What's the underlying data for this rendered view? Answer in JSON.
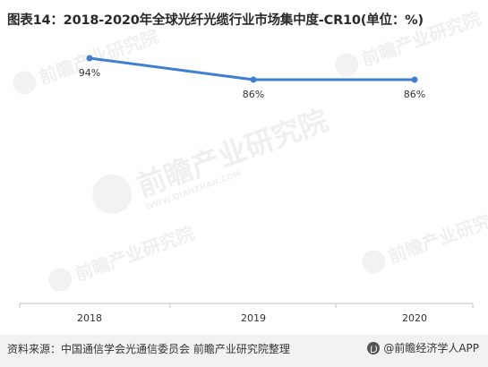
{
  "title": "图表14：2018-2020年全球光纤光缆行业市场集中度-CR10(单位：%)",
  "source": "资料来源：中国通信学会光通信委员会 前瞻产业研究院整理",
  "brand": "@前瞻经济学人APP",
  "watermark": {
    "logo": "前瞻产业研究院",
    "url": "WWW.QIANZHAN.COM"
  },
  "colors": {
    "line": "#3f7fd0",
    "axis": "#bfbfbf",
    "title": "#2a2a2a"
  },
  "chart_data": {
    "type": "line",
    "categories": [
      "2018",
      "2019",
      "2020"
    ],
    "series": [
      {
        "values": [
          94,
          86,
          86
        ],
        "labels": [
          "94%",
          "86%",
          "86%"
        ]
      }
    ],
    "ylim": [
      0,
      100
    ],
    "grid": false,
    "legend": "none"
  }
}
